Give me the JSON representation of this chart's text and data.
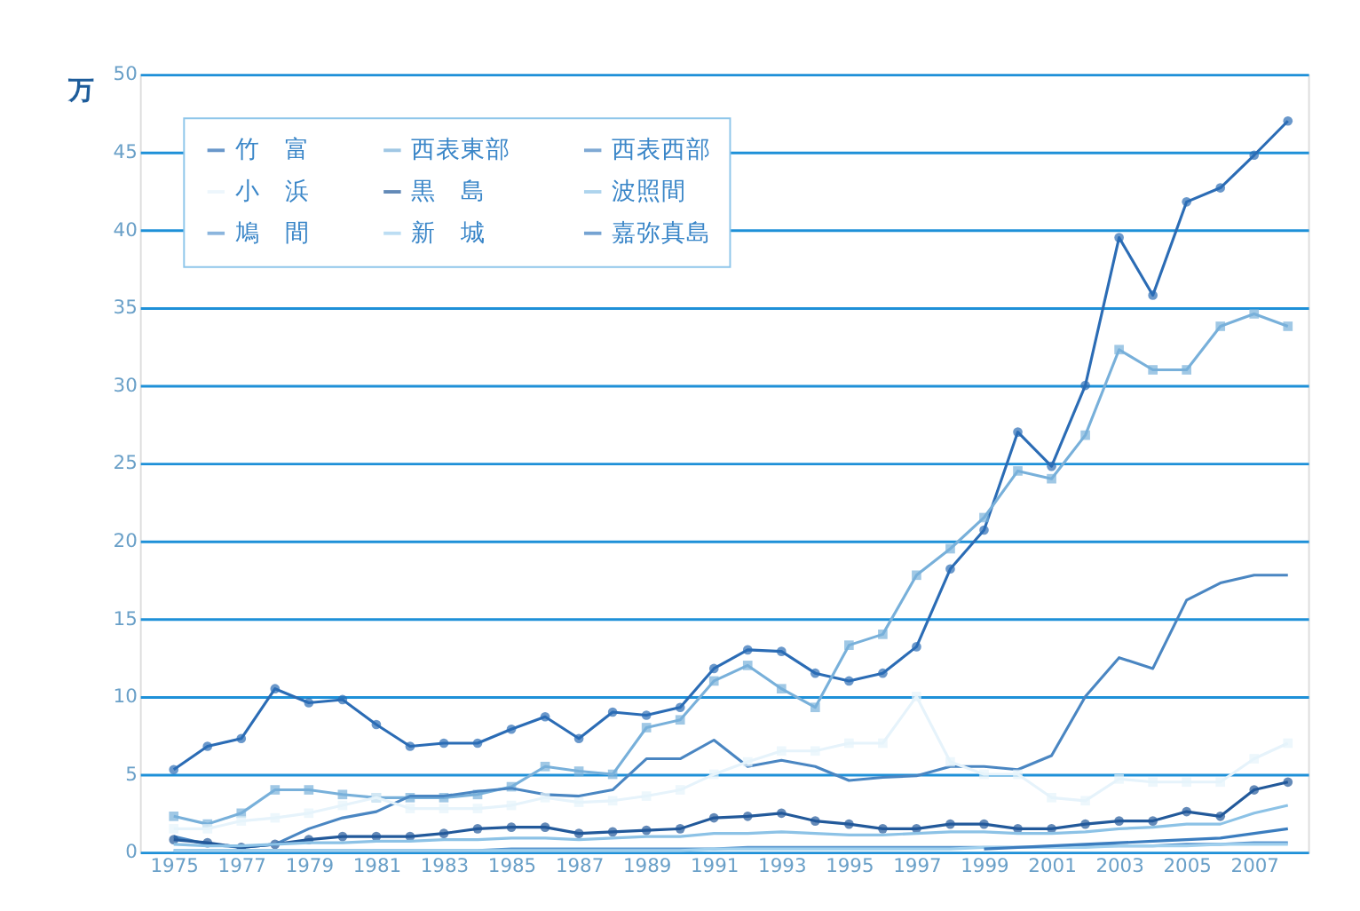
{
  "chart_data": {
    "type": "line",
    "ylabel": "万",
    "x": [
      1975,
      1976,
      1977,
      1978,
      1979,
      1980,
      1981,
      1982,
      1983,
      1984,
      1985,
      1986,
      1987,
      1988,
      1989,
      1990,
      1991,
      1992,
      1993,
      1994,
      1995,
      1996,
      1997,
      1998,
      1999,
      2000,
      2001,
      2002,
      2003,
      2004,
      2005,
      2006,
      2007,
      2008
    ],
    "series": [
      {
        "name": "竹　富",
        "color": "#2b6cb5",
        "marker": "circle",
        "values": [
          5.3,
          6.8,
          7.3,
          10.5,
          9.6,
          9.8,
          8.2,
          6.8,
          7.0,
          7.0,
          7.9,
          8.7,
          7.3,
          9.0,
          8.8,
          9.3,
          11.8,
          13.0,
          12.9,
          11.5,
          11.0,
          11.5,
          13.2,
          18.2,
          20.7,
          27.0,
          24.8,
          30.0,
          39.5,
          35.8,
          41.8,
          42.7,
          44.8,
          47.0
        ]
      },
      {
        "name": "西表東部",
        "color": "#78b0da",
        "marker": "square",
        "values": [
          2.3,
          1.8,
          2.5,
          4.0,
          4.0,
          3.7,
          3.5,
          3.5,
          3.5,
          3.7,
          4.2,
          5.5,
          5.2,
          5.0,
          8.0,
          8.5,
          11.0,
          12.0,
          10.5,
          9.3,
          13.3,
          14.0,
          17.8,
          19.5,
          21.5,
          24.5,
          24.0,
          26.8,
          32.3,
          31.0,
          31.0,
          33.8,
          34.6,
          33.8
        ]
      },
      {
        "name": "西表西部",
        "color": "#4a86c2",
        "marker": "none",
        "values": [
          1.0,
          0.5,
          0.3,
          0.5,
          1.5,
          2.2,
          2.6,
          3.6,
          3.6,
          3.9,
          4.1,
          3.7,
          3.6,
          4.0,
          6.0,
          6.0,
          7.2,
          5.5,
          5.9,
          5.5,
          4.6,
          4.8,
          4.9,
          5.5,
          5.5,
          5.3,
          6.2,
          10.0,
          12.5,
          11.8,
          16.2,
          17.3,
          17.8,
          17.8
        ]
      },
      {
        "name": "小　浜",
        "color": "#e6f3fb",
        "marker": "square",
        "values": [
          1.5,
          1.5,
          2.0,
          2.2,
          2.5,
          3.0,
          3.5,
          2.8,
          2.8,
          2.8,
          3.0,
          3.5,
          3.2,
          3.3,
          3.6,
          4.0,
          5.0,
          5.8,
          6.5,
          6.5,
          7.0,
          7.0,
          10.0,
          5.8,
          5.0,
          5.0,
          3.5,
          3.3,
          4.7,
          4.5,
          4.5,
          4.5,
          6.0,
          7.0
        ]
      },
      {
        "name": "黒　島",
        "color": "#22599a",
        "marker": "circle",
        "values": [
          0.8,
          0.6,
          0.3,
          0.5,
          0.8,
          1.0,
          1.0,
          1.0,
          1.2,
          1.5,
          1.6,
          1.6,
          1.2,
          1.3,
          1.4,
          1.5,
          2.2,
          2.3,
          2.5,
          2.0,
          1.8,
          1.5,
          1.5,
          1.8,
          1.8,
          1.5,
          1.5,
          1.8,
          2.0,
          2.0,
          2.6,
          2.3,
          4.0,
          4.5
        ]
      },
      {
        "name": "波照間",
        "color": "#8cc2e6",
        "marker": "none",
        "values": [
          0.5,
          0.4,
          0.4,
          0.5,
          0.6,
          0.6,
          0.7,
          0.7,
          0.8,
          0.8,
          0.9,
          0.9,
          0.8,
          0.9,
          1.0,
          1.0,
          1.2,
          1.2,
          1.3,
          1.2,
          1.1,
          1.1,
          1.2,
          1.3,
          1.3,
          1.2,
          1.2,
          1.3,
          1.5,
          1.6,
          1.8,
          1.8,
          2.5,
          3.0
        ]
      },
      {
        "name": "鳩　間",
        "color": "#5b97cf",
        "marker": "none",
        "values": [
          0.1,
          0.1,
          0.1,
          0.1,
          0.1,
          0.1,
          0.1,
          0.1,
          0.1,
          0.1,
          0.2,
          0.2,
          0.2,
          0.2,
          0.2,
          0.2,
          0.2,
          0.3,
          0.3,
          0.3,
          0.3,
          0.3,
          0.3,
          0.3,
          0.3,
          0.3,
          0.3,
          0.4,
          0.4,
          0.4,
          0.5,
          0.5,
          0.6,
          0.6
        ]
      },
      {
        "name": "新　城",
        "color": "#a0d0ee",
        "marker": "none",
        "values": [
          0.1,
          0.1,
          0.1,
          0.1,
          0.1,
          0.1,
          0.1,
          0.1,
          0.1,
          0.1,
          0.1,
          0.1,
          0.1,
          0.1,
          0.1,
          0.1,
          0.2,
          0.2,
          0.2,
          0.2,
          0.2,
          0.2,
          0.2,
          0.2,
          0.3,
          0.3,
          0.3,
          0.3,
          0.4,
          0.4,
          0.4,
          0.5,
          0.5,
          0.5
        ]
      },
      {
        "name": "嘉弥真島",
        "color": "#3b7dbf",
        "marker": "none",
        "values": [
          null,
          null,
          null,
          null,
          null,
          null,
          null,
          null,
          null,
          null,
          null,
          null,
          null,
          null,
          null,
          null,
          null,
          null,
          null,
          null,
          null,
          null,
          null,
          null,
          0.2,
          0.3,
          0.4,
          0.5,
          0.6,
          0.7,
          0.8,
          0.9,
          1.2,
          1.5
        ]
      }
    ],
    "xlim": [
      1974,
      2008.6
    ],
    "xticks": [
      1975,
      1977,
      1979,
      1981,
      1983,
      1985,
      1987,
      1989,
      1991,
      1993,
      1995,
      1997,
      1999,
      2001,
      2003,
      2005,
      2007
    ],
    "ylim": [
      0,
      50
    ],
    "yticks": [
      0,
      5,
      10,
      15,
      20,
      25,
      30,
      35,
      40,
      45,
      50
    ],
    "grid": "y",
    "legend": "top left"
  }
}
